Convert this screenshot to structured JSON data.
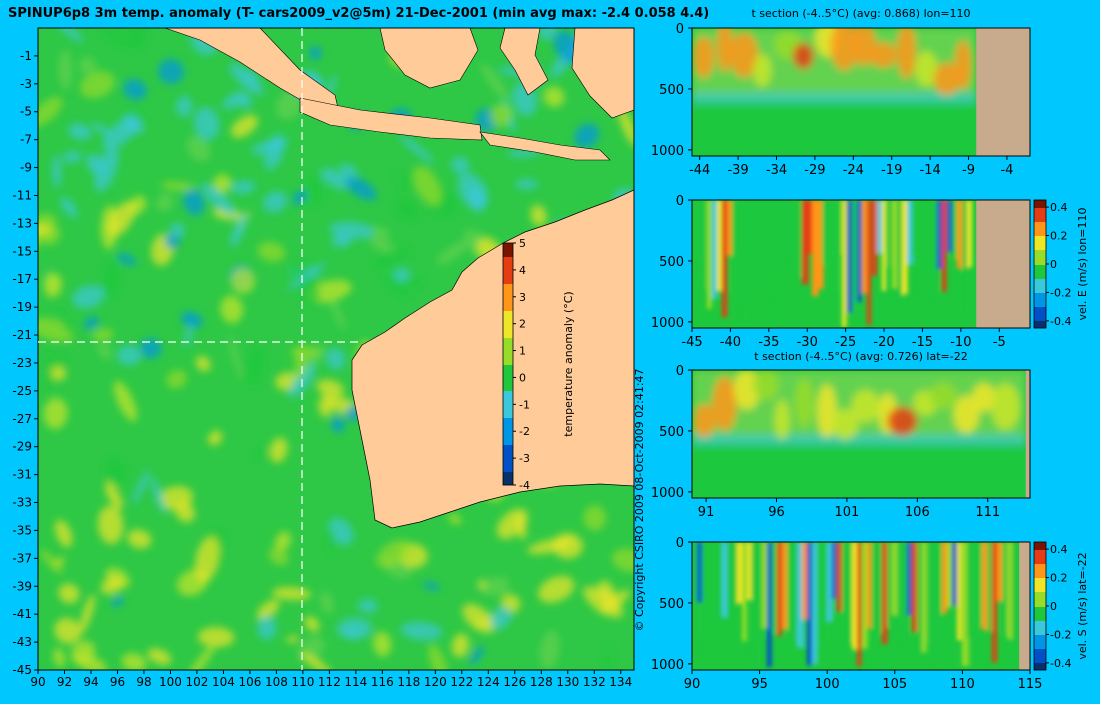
{
  "title": "SPINUP6p8 3m temp. anomaly (T- cars2009_v2@5m) 21-Dec-2001 (min avg max: -2.4 0.058 4.4)",
  "copyright": "© Copyright CSIRO 2009    08-Oct-2009 02:41:47",
  "colors": {
    "background": "#00c8ff",
    "land": "#ffcc99",
    "grey_land": "#c8aa8c"
  },
  "colormap": [
    "#08306b",
    "#0050c8",
    "#0096e6",
    "#3cc8dc",
    "#1ec83c",
    "#96dc28",
    "#f0e628",
    "#ff9619",
    "#e63c14",
    "#781400"
  ],
  "chart_data": [
    {
      "id": "map",
      "type": "heatmap",
      "title": "",
      "x_ticks": [
        90,
        92,
        94,
        96,
        98,
        100,
        102,
        104,
        106,
        108,
        110,
        112,
        114,
        116,
        118,
        120,
        122,
        124,
        126,
        128,
        130,
        132,
        134
      ],
      "y_ticks": [
        -1,
        -3,
        -5,
        -7,
        -9,
        -11,
        -13,
        -15,
        -17,
        -19,
        -21,
        -23,
        -25,
        -27,
        -29,
        -31,
        -33,
        -35,
        -37,
        -39,
        -41,
        -43,
        -45
      ],
      "xlim": [
        90,
        135
      ],
      "ylim": [
        -45,
        1
      ],
      "section_lon": 110,
      "section_lat": -22,
      "colorbar": {
        "label": "temperature anomaly (°C)",
        "ticks": [
          5,
          4,
          3,
          2,
          1,
          0,
          -1,
          -2,
          -3,
          -4
        ],
        "range": [
          -4,
          5
        ]
      }
    },
    {
      "id": "tsec_lon",
      "type": "heatmap",
      "title": "t section (-4..5°C) (avg: 0.868) lon=110",
      "x_ticks": [
        -44,
        -39,
        -34,
        -29,
        -24,
        -19,
        -14,
        -9,
        -4
      ],
      "y_ticks": [
        0,
        500,
        1000
      ],
      "xlim": [
        -45,
        -1
      ],
      "ylim": [
        0,
        1050
      ],
      "land_from": -8
    },
    {
      "id": "vel_lon",
      "type": "heatmap",
      "title": "",
      "x_ticks": [
        -45,
        -40,
        -35,
        -30,
        -25,
        -20,
        -15,
        -10,
        -5
      ],
      "y_ticks": [
        0,
        500,
        1000
      ],
      "xlim": [
        -45,
        -1
      ],
      "ylim": [
        0,
        1050
      ],
      "land_from": -8,
      "colorbar": {
        "label": "vel. E (m/s) lon=110",
        "ticks": [
          0.4,
          0.2,
          0,
          -0.2,
          -0.4
        ],
        "range": [
          -0.45,
          0.45
        ]
      }
    },
    {
      "id": "tsec_lat",
      "type": "heatmap",
      "title": "t section (-4..5°C) (avg: 0.726) lat=-22",
      "x_ticks": [
        91,
        96,
        101,
        106,
        111
      ],
      "y_ticks": [
        0,
        500,
        1000
      ],
      "xlim": [
        90,
        114
      ],
      "ylim": [
        0,
        1050
      ],
      "land_from": 113.7
    },
    {
      "id": "vel_lat",
      "type": "heatmap",
      "title": "",
      "x_ticks": [
        90,
        95,
        100,
        105,
        110,
        115
      ],
      "y_ticks": [
        0,
        500,
        1000
      ],
      "xlim": [
        90,
        115
      ],
      "ylim": [
        0,
        1050
      ],
      "land_from": 114.2,
      "colorbar": {
        "label": "vel. S (m/s) lat=-22",
        "ticks": [
          0.4,
          0.2,
          0,
          -0.2,
          -0.4
        ],
        "range": [
          -0.45,
          0.45
        ]
      }
    }
  ]
}
